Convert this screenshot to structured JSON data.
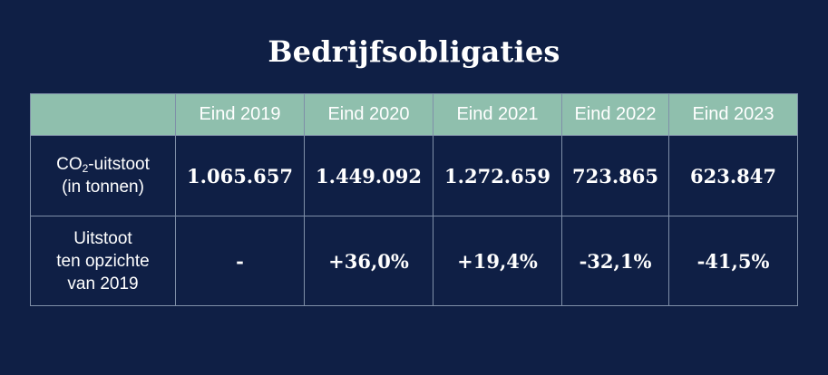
{
  "chart_data": {
    "type": "table",
    "title": "Bedrijfsobligaties",
    "columns": [
      "",
      "Eind 2019",
      "Eind 2020",
      "Eind 2021",
      "Eind 2022",
      "Eind 2023"
    ],
    "rows": [
      {
        "label_main": "CO",
        "label_sub": "2",
        "label_rest": "-uitstoot",
        "label_line2": "(in tonnen)",
        "values": [
          "1.065.657",
          "1.449.092",
          "1.272.659",
          "723.865",
          "623.847"
        ]
      },
      {
        "label_line1": "Uitstoot",
        "label_line2": "ten opzichte",
        "label_line3": "van 2019",
        "values": [
          "-",
          "+36,0%",
          "+19,4%",
          "-32,1%",
          "-41,5%"
        ]
      }
    ]
  },
  "colors": {
    "background": "#0f1f45",
    "header_fill": "#8fbfad",
    "border": "#7f8fa8",
    "text": "#ffffff"
  }
}
